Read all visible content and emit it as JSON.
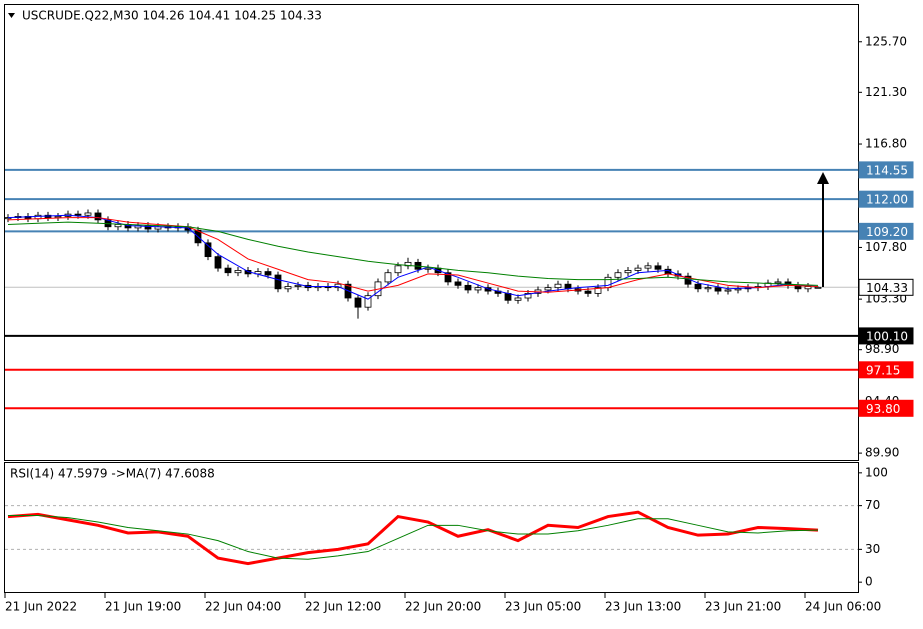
{
  "chart_data": [
    {
      "type": "candlestick",
      "title": "USCRUDE.Q22,M30  104.26 104.41 104.25 104.33",
      "up_color": "#ffffff",
      "down_color": "#000000",
      "ylim": [
        89.3,
        128.9
      ],
      "yticks": [
        {
          "value": 125.7,
          "label": "125.70"
        },
        {
          "value": 121.3,
          "label": "121.30"
        },
        {
          "value": 116.8,
          "label": "116.80"
        },
        {
          "value": 107.8,
          "label": "107.80"
        },
        {
          "value": 103.3,
          "label": "103.30"
        },
        {
          "value": 98.9,
          "label": "98.90"
        },
        {
          "value": 94.4,
          "label": "94.40"
        },
        {
          "value": 89.9,
          "label": "89.90"
        }
      ],
      "open": [
        110.3,
        110.4,
        110.5,
        110.3,
        110.6,
        110.4,
        110.5,
        110.7,
        110.6,
        110.8,
        110.2,
        109.6,
        109.8,
        109.5,
        109.7,
        109.4,
        109.6,
        109.5,
        109.6,
        109.3,
        108.2,
        107.0,
        106.0,
        105.6,
        105.8,
        105.5,
        105.7,
        105.4,
        104.2,
        104.4,
        104.5,
        104.3,
        104.4,
        104.3,
        104.6,
        103.4,
        102.6,
        103.6,
        104.8,
        105.6,
        106.2,
        106.5,
        105.9,
        106.0,
        105.6,
        104.8,
        104.5,
        104.1,
        104.3,
        104.0,
        103.8,
        103.2,
        103.4,
        103.8,
        104.1,
        104.3,
        104.6,
        104.2,
        104.0,
        103.8,
        104.3,
        105.2,
        105.6,
        105.8,
        106.0,
        106.2,
        105.9,
        105.5,
        105.3,
        104.6,
        104.2,
        104.3,
        104.0,
        104.1,
        104.2,
        104.3,
        104.4,
        104.7,
        104.8,
        104.5,
        104.2,
        104.26
      ],
      "high": [
        110.7,
        110.8,
        110.8,
        110.9,
        110.9,
        110.8,
        111.0,
        111.0,
        111.1,
        111.1,
        110.5,
        110.1,
        110.1,
        110.0,
        110.0,
        109.9,
        109.9,
        109.9,
        109.9,
        109.6,
        108.5,
        107.3,
        106.3,
        106.1,
        106.1,
        106.0,
        106.0,
        105.7,
        104.7,
        104.8,
        104.8,
        104.7,
        104.7,
        104.9,
        104.9,
        103.7,
        103.9,
        105.1,
        105.9,
        106.5,
        106.9,
        106.8,
        106.3,
        106.3,
        105.9,
        105.1,
        104.8,
        104.6,
        104.6,
        104.3,
        104.1,
        103.7,
        104.1,
        104.4,
        104.6,
        104.9,
        104.9,
        104.5,
        104.3,
        104.6,
        105.5,
        105.9,
        106.1,
        106.3,
        106.5,
        106.5,
        106.2,
        105.8,
        105.6,
        104.9,
        104.6,
        104.6,
        104.4,
        104.5,
        104.6,
        104.7,
        105.0,
        105.1,
        105.1,
        104.8,
        104.7,
        104.41
      ],
      "low": [
        110.0,
        110.1,
        110.0,
        110.0,
        110.1,
        110.1,
        110.2,
        110.3,
        110.3,
        109.9,
        109.3,
        109.3,
        109.2,
        109.2,
        109.1,
        109.1,
        109.2,
        109.2,
        109.0,
        107.9,
        106.7,
        105.7,
        105.3,
        105.3,
        105.2,
        105.2,
        105.1,
        103.9,
        103.9,
        104.1,
        104.0,
        104.0,
        104.0,
        104.0,
        103.1,
        101.6,
        102.3,
        103.3,
        104.5,
        105.3,
        105.9,
        105.6,
        105.6,
        105.3,
        104.5,
        104.2,
        103.8,
        103.8,
        103.7,
        103.5,
        102.9,
        102.9,
        103.1,
        103.5,
        103.8,
        104.0,
        103.9,
        103.7,
        103.5,
        103.5,
        104.0,
        104.9,
        105.3,
        105.5,
        105.7,
        105.6,
        105.2,
        105.0,
        104.3,
        103.9,
        103.9,
        103.7,
        103.7,
        103.8,
        103.9,
        104.0,
        104.1,
        104.4,
        104.2,
        103.9,
        103.9,
        104.25
      ],
      "close": [
        110.4,
        110.5,
        110.3,
        110.6,
        110.4,
        110.5,
        110.7,
        110.6,
        110.8,
        110.2,
        109.6,
        109.8,
        109.5,
        109.7,
        109.4,
        109.6,
        109.5,
        109.6,
        109.3,
        108.2,
        107.0,
        106.0,
        105.6,
        105.8,
        105.5,
        105.7,
        105.4,
        104.2,
        104.4,
        104.5,
        104.3,
        104.4,
        104.3,
        104.6,
        103.4,
        102.6,
        103.6,
        104.8,
        105.6,
        106.2,
        106.5,
        105.9,
        106.0,
        105.6,
        104.8,
        104.5,
        104.1,
        104.3,
        104.0,
        103.8,
        103.2,
        103.4,
        103.8,
        104.1,
        104.3,
        104.6,
        104.2,
        104.0,
        103.8,
        104.3,
        105.2,
        105.6,
        105.8,
        106.0,
        106.2,
        105.9,
        105.5,
        105.3,
        104.6,
        104.2,
        104.3,
        104.0,
        104.1,
        104.2,
        104.3,
        104.4,
        104.7,
        104.8,
        104.5,
        104.2,
        104.4,
        104.33
      ],
      "overlays": {
        "x": [
          0,
          3,
          6,
          9,
          12,
          15,
          18,
          21,
          24,
          27,
          30,
          33,
          36,
          39,
          42,
          45,
          48,
          51,
          54,
          57,
          60,
          63,
          66,
          69,
          72,
          75,
          78,
          81
        ],
        "series": [
          {
            "color": "#0000ff",
            "values": [
              110.4,
              110.5,
              110.6,
              110.4,
              109.7,
              109.6,
              109.5,
              107.2,
              105.7,
              105.0,
              104.4,
              104.4,
              103.3,
              105.2,
              106.1,
              105.2,
              104.2,
              103.6,
              104.0,
              104.3,
              104.5,
              105.6,
              105.8,
              104.7,
              104.2,
              104.3,
              104.6,
              104.4
            ]
          },
          {
            "color": "#ff0000",
            "values": [
              110.2,
              110.3,
              110.4,
              110.4,
              110.0,
              109.8,
              109.6,
              108.5,
              106.8,
              105.9,
              105.0,
              104.7,
              104.0,
              104.5,
              105.5,
              105.4,
              104.7,
              104.0,
              103.9,
              104.1,
              104.3,
              105.0,
              105.5,
              105.0,
              104.5,
              104.3,
              104.5,
              104.4
            ]
          },
          {
            "color": "#008000",
            "values": [
              109.8,
              109.9,
              110.0,
              109.9,
              109.8,
              109.7,
              109.6,
              109.2,
              108.5,
              107.9,
              107.4,
              107.0,
              106.6,
              106.3,
              106.1,
              105.8,
              105.6,
              105.3,
              105.1,
              105.0,
              105.0,
              105.1,
              105.2,
              105.0,
              104.8,
              104.7,
              104.6,
              104.5
            ]
          }
        ]
      },
      "levels": [
        {
          "value": 114.55,
          "color": "#4682b4"
        },
        {
          "value": 112,
          "label": "112.00",
          "color": "#4682b4"
        },
        {
          "value": 109.2,
          "label": "109.20",
          "color": "#4682b4"
        },
        {
          "value": 104.33,
          "color": "#c0c0c0"
        },
        {
          "value": 100.1,
          "label": "100.10",
          "color": "#000000"
        },
        {
          "value": 97.15,
          "color": "#ff0000"
        },
        {
          "value": 93.8,
          "label": "93.80",
          "color": "#ff0000"
        }
      ]
    },
    {
      "type": "line",
      "title": "RSI(14) 47.5979  ->MA(7) 47.6088",
      "ylim": [
        -9,
        109
      ],
      "yticks": [
        100,
        70,
        30,
        0
      ],
      "levels": [
        70,
        30
      ],
      "x": [
        0,
        3,
        6,
        9,
        12,
        15,
        18,
        21,
        24,
        27,
        30,
        33,
        36,
        39,
        42,
        45,
        48,
        51,
        54,
        57,
        60,
        63,
        66,
        69,
        72,
        75,
        78,
        81
      ],
      "series": [
        {
          "color": "#ff0000",
          "values": [
            60,
            62,
            57,
            52,
            45,
            46,
            42,
            22,
            17,
            22,
            27,
            30,
            35,
            60,
            55,
            42,
            48,
            38,
            52,
            50,
            60,
            64,
            50,
            43,
            44,
            50,
            49,
            47.5979
          ]
        },
        {
          "color": "#008000",
          "values": [
            61,
            61,
            59,
            55,
            50,
            47,
            44,
            38,
            28,
            22,
            21,
            24,
            28,
            40,
            52,
            52,
            47,
            44,
            44,
            47,
            52,
            58,
            58,
            52,
            46,
            45,
            47,
            47.6088
          ]
        }
      ]
    }
  ],
  "x_axis": {
    "ticks": [
      {
        "value": 0,
        "label": "21 Jun 2022"
      },
      {
        "value": 10,
        "label": "21 Jun 19:00"
      },
      {
        "value": 20,
        "label": "22 Jun 04:00"
      },
      {
        "value": 30,
        "label": "22 Jun 12:00"
      },
      {
        "value": 40,
        "label": "22 Jun 20:00"
      },
      {
        "value": 50,
        "label": "23 Jun 05:00"
      },
      {
        "value": 60,
        "label": "23 Jun 13:00"
      },
      {
        "value": 70,
        "label": "23 Jun 21:00"
      },
      {
        "value": 80,
        "label": "24 Jun 06:00"
      }
    ]
  }
}
